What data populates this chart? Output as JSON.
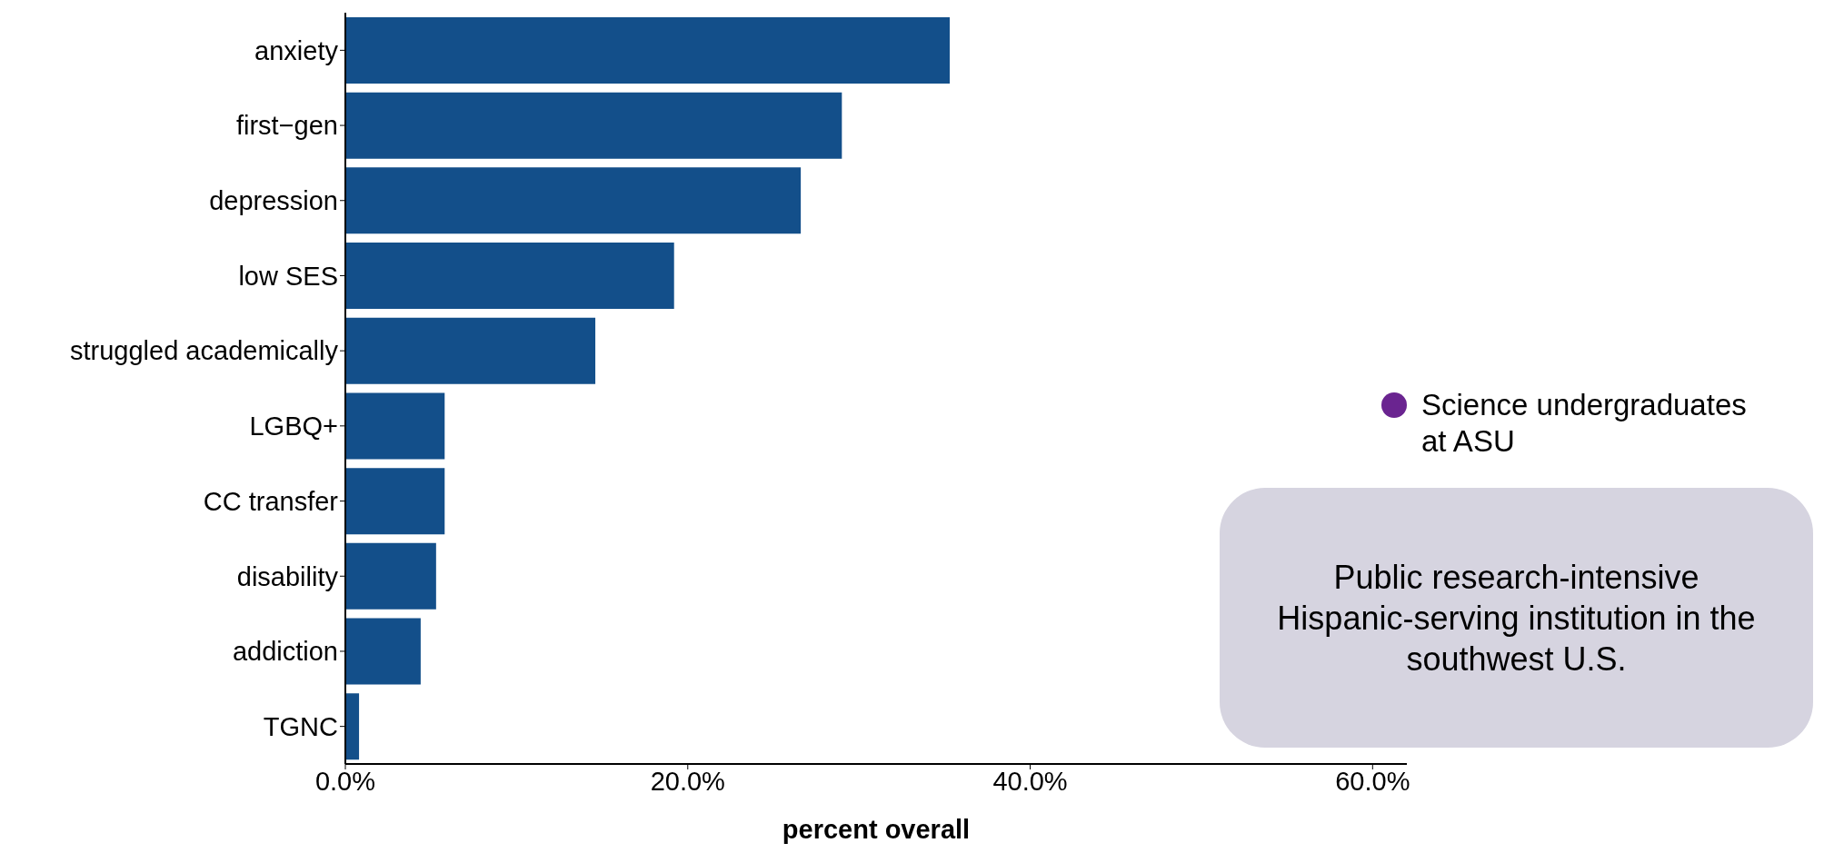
{
  "chart_data": {
    "type": "bar",
    "orientation": "horizontal",
    "xlabel": "percent overall",
    "categories": [
      "anxiety",
      "first−gen",
      "depression",
      "low SES",
      "struggled academically",
      "LGBQ+",
      "CC transfer",
      "disability",
      "addiction",
      "TGNC"
    ],
    "series": [
      {
        "color": "#134f8a",
        "values": [
          35.3,
          29.0,
          26.6,
          19.2,
          14.6,
          5.8,
          5.8,
          5.3,
          4.4,
          0.8
        ]
      }
    ],
    "xlim": [
      0,
      62
    ],
    "xticks": [
      {
        "value": 0,
        "label": "0.0%"
      },
      {
        "value": 20,
        "label": "20.0%"
      },
      {
        "value": 40,
        "label": "40.0%"
      },
      {
        "value": 60,
        "label": "60.0%"
      }
    ],
    "grid": false,
    "annotations": [
      "Science undergraduates at ASU",
      "Public research-intensive Hispanic-serving institution in the southwest U.S."
    ]
  }
}
